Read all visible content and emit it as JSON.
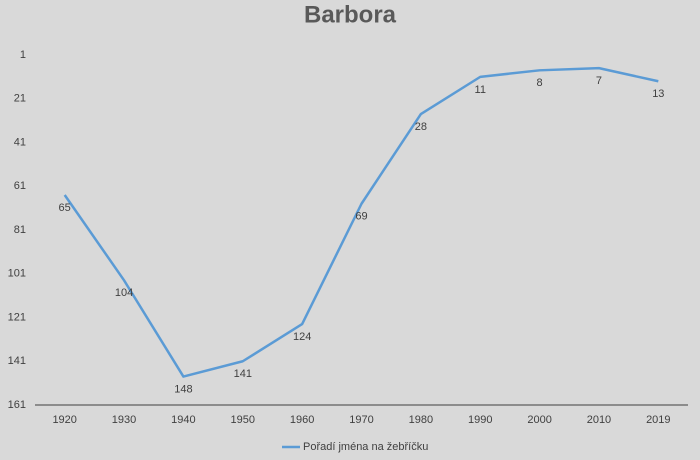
{
  "chart_data": {
    "type": "line",
    "title": "Barbora",
    "categories": [
      "1920",
      "1930",
      "1940",
      "1950",
      "1960",
      "1970",
      "1980",
      "1990",
      "2000",
      "2010",
      "2019"
    ],
    "series": [
      {
        "name": "Pořadí jména na žebříčku",
        "color": "#5b9bd5",
        "values": [
          65,
          104,
          148,
          141,
          124,
          69,
          28,
          11,
          8,
          7,
          13
        ]
      }
    ],
    "ylim": [
      1,
      161
    ],
    "yticks": [
      1,
      21,
      41,
      61,
      81,
      101,
      121,
      141,
      161
    ],
    "y_inverted": true,
    "grid": false,
    "data_labels": true,
    "legend": "bottom"
  }
}
